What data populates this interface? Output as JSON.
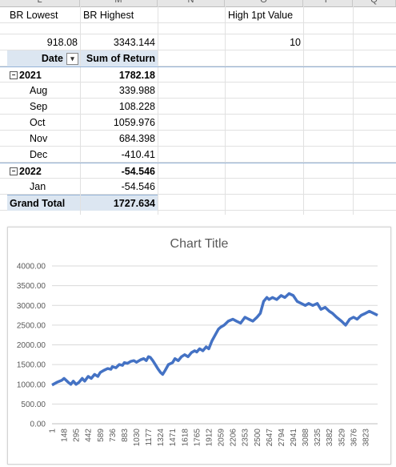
{
  "sheet": {
    "col_headers": [
      "L",
      "M",
      "N",
      "O",
      "P",
      "Q"
    ],
    "top_labels": {
      "br_lowest": "BR Lowest",
      "br_highest": "BR Highest",
      "high_1pt": "High 1pt Value"
    },
    "top_values": {
      "br_lowest": "918.08",
      "br_highest": "3343.144",
      "high_1pt": "10"
    },
    "pivot": {
      "header_row_label": "Date",
      "header_value_label": "Sum of Return",
      "collapse_glyph": "−",
      "filter_glyph": "▾",
      "rows": [
        {
          "label": "2021",
          "value": "1782.18",
          "kind": "year"
        },
        {
          "label": "Aug",
          "value": "339.988",
          "kind": "month"
        },
        {
          "label": "Sep",
          "value": "108.228",
          "kind": "month"
        },
        {
          "label": "Oct",
          "value": "1059.976",
          "kind": "month"
        },
        {
          "label": "Nov",
          "value": "684.398",
          "kind": "month"
        },
        {
          "label": "Dec",
          "value": "-410.41",
          "kind": "month"
        },
        {
          "label": "2022",
          "value": "-54.546",
          "kind": "year"
        },
        {
          "label": "Jan",
          "value": "-54.546",
          "kind": "month"
        }
      ],
      "grand_total_label": "Grand Total",
      "grand_total_value": "1727.634"
    }
  },
  "chart_data": {
    "type": "line",
    "title": "Chart Title",
    "xlabel": "",
    "ylabel": "",
    "ylim": [
      0,
      4000
    ],
    "yticks": [
      "0.00",
      "500.00",
      "1000.00",
      "1500.00",
      "2000.00",
      "2500.00",
      "3000.00",
      "3500.00",
      "4000.00"
    ],
    "xtick_labels": [
      "1",
      "148",
      "295",
      "442",
      "589",
      "736",
      "883",
      "1030",
      "1177",
      "1324",
      "1471",
      "1618",
      "1765",
      "1912",
      "2059",
      "2206",
      "2353",
      "2500",
      "2647",
      "2794",
      "2941",
      "3088",
      "3235",
      "3382",
      "3529",
      "3676",
      "3823"
    ],
    "xlim": [
      1,
      3970
    ],
    "grid": true,
    "line_color": "#4472c4",
    "series": [
      {
        "x": [
          1,
          60,
          120,
          148,
          200,
          230,
          260,
          295,
          330,
          370,
          400,
          442,
          480,
          520,
          560,
          589,
          630,
          680,
          720,
          736,
          780,
          820,
          860,
          883,
          920,
          960,
          1000,
          1030,
          1080,
          1120,
          1150,
          1177,
          1200,
          1230,
          1260,
          1290,
          1324,
          1350,
          1380,
          1420,
          1471,
          1500,
          1540,
          1580,
          1618,
          1660,
          1700,
          1740,
          1765,
          1800,
          1840,
          1880,
          1912,
          1950,
          1990,
          2030,
          2059,
          2100,
          2150,
          2206,
          2250,
          2300,
          2353,
          2400,
          2450,
          2500,
          2540,
          2580,
          2620,
          2647,
          2690,
          2740,
          2794,
          2840,
          2890,
          2941,
          2990,
          3040,
          3088,
          3130,
          3180,
          3235,
          3280,
          3330,
          3382,
          3420,
          3470,
          3529,
          3580,
          3630,
          3676,
          3720,
          3770,
          3823,
          3870,
          3920,
          3970
        ],
        "y": [
          980,
          1050,
          1100,
          1150,
          1050,
          1000,
          1080,
          1000,
          1050,
          1150,
          1080,
          1200,
          1150,
          1250,
          1200,
          1300,
          1350,
          1400,
          1380,
          1450,
          1420,
          1500,
          1480,
          1550,
          1530,
          1580,
          1600,
          1560,
          1620,
          1650,
          1600,
          1700,
          1680,
          1600,
          1500,
          1400,
          1300,
          1250,
          1350,
          1500,
          1550,
          1650,
          1600,
          1700,
          1750,
          1700,
          1800,
          1850,
          1820,
          1900,
          1850,
          1950,
          1900,
          2100,
          2250,
          2400,
          2450,
          2500,
          2600,
          2650,
          2600,
          2550,
          2700,
          2650,
          2600,
          2700,
          2800,
          3100,
          3200,
          3150,
          3200,
          3150,
          3250,
          3200,
          3300,
          3250,
          3100,
          3050,
          3000,
          3050,
          3000,
          3050,
          2900,
          2950,
          2850,
          2800,
          2700,
          2600,
          2500,
          2650,
          2700,
          2650,
          2750,
          2800,
          2850,
          2800,
          2750
        ]
      }
    ]
  }
}
